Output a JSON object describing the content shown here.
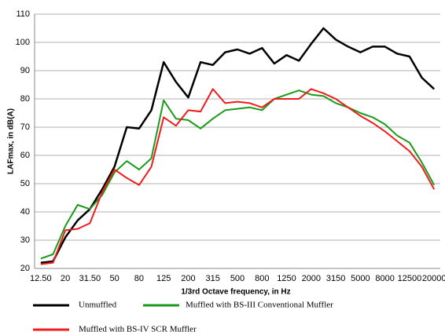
{
  "chart_data": {
    "type": "line",
    "x_label": "1/3rd Octave frequency, in Hz",
    "y_label": "LAFmax, in dB(A)",
    "categories": [
      "12.50",
      null,
      "20",
      null,
      "31.50",
      null,
      "50",
      null,
      "80",
      null,
      "125",
      null,
      "200",
      null,
      "315",
      null,
      "500",
      null,
      "800",
      null,
      "1250",
      null,
      "2000",
      null,
      "3150",
      null,
      "5000",
      null,
      "8000",
      null,
      "12500",
      null,
      "20000"
    ],
    "series": [
      {
        "name": "Unmuffled",
        "color": "#000000",
        "values": [
          22,
          22.5,
          31,
          37,
          41,
          48,
          56,
          70,
          69.5,
          76,
          93,
          86,
          80.5,
          93,
          92,
          96.5,
          97.5,
          96,
          98,
          92.5,
          95.5,
          93.5,
          99.5,
          105,
          101,
          98.5,
          96.5,
          98.5,
          98.5,
          96,
          95,
          87.5,
          83.5
        ]
      },
      {
        "name": "Muffled with BS-III Conventional Muffler",
        "color": "#1a9a1a",
        "values": [
          23.5,
          25,
          35,
          42.5,
          41,
          46,
          54,
          58,
          55,
          59,
          79.5,
          73,
          72.5,
          69.5,
          73,
          76,
          76.5,
          77,
          76,
          80,
          81.5,
          83,
          81.5,
          81,
          78.5,
          77,
          75,
          73.5,
          71,
          67,
          64.5,
          57.5,
          49.5
        ]
      },
      {
        "name": "Muffled with BS-IV SCR Muffler",
        "color": "#ee1c1c",
        "values": [
          21.5,
          22,
          33.5,
          34,
          36,
          47,
          55,
          52,
          49.5,
          56,
          73.5,
          70.5,
          76,
          75.5,
          83.5,
          78.5,
          79,
          78.5,
          77,
          80,
          80,
          80,
          83.5,
          82,
          80,
          77,
          74,
          71.5,
          68.5,
          65,
          61.5,
          56,
          48
        ]
      }
    ],
    "ylim": [
      20,
      110
    ],
    "yticks": [
      20,
      30,
      40,
      50,
      60,
      70,
      80,
      90,
      100,
      110
    ],
    "grid": true
  }
}
